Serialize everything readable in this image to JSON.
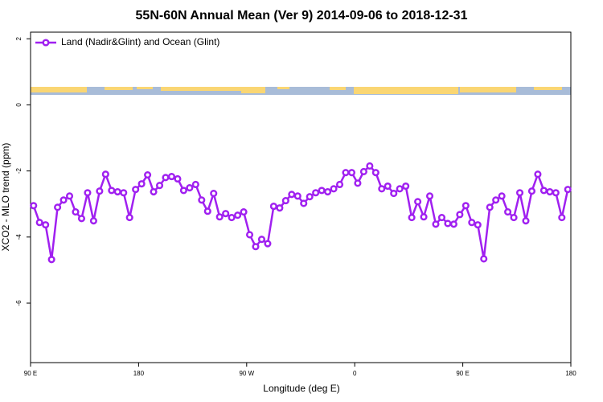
{
  "chart_data": {
    "type": "line",
    "title": "55N-60N Annual Mean (Ver 9)   2014-09-06 to 2018-12-31",
    "xlabel": "Longitude (deg E)",
    "ylabel": "XCO2 - MLO trend (ppm)",
    "xlim": [
      90,
      540
    ],
    "ylim": [
      -7.8,
      2.2
    ],
    "xticks": [
      {
        "value": 90,
        "label": "90 E"
      },
      180,
      {
        "value": 270,
        "label": "90 W"
      },
      {
        "value": 360,
        "label": "0"
      },
      {
        "value": 450,
        "label": "90 E"
      },
      {
        "value": 540,
        "label": "180"
      }
    ],
    "yticks": [
      2,
      0,
      -2,
      -4,
      -6
    ],
    "legend": "top-left",
    "x": [
      92.5,
      97.5,
      102.5,
      107.5,
      112.5,
      117.5,
      122.5,
      127.5,
      132.5,
      137.5,
      142.5,
      147.5,
      152.5,
      157.5,
      162.5,
      167.5,
      172.5,
      177.5,
      182.5,
      187.5,
      192.5,
      197.5,
      202.5,
      207.5,
      212.5,
      217.5,
      222.5,
      227.5,
      232.5,
      237.5,
      242.5,
      247.5,
      252.5,
      257.5,
      262.5,
      267.5,
      272.5,
      277.5,
      282.5,
      287.5,
      292.5,
      297.5,
      302.5,
      307.5,
      312.5,
      317.5,
      322.5,
      327.5,
      332.5,
      337.5,
      342.5,
      347.5,
      352.5,
      357.5,
      362.5,
      367.5,
      372.5,
      377.5,
      382.5,
      387.5,
      392.5,
      397.5,
      402.5,
      407.5,
      412.5,
      417.5,
      422.5,
      427.5,
      432.5,
      437.5,
      442.5,
      447.5,
      452.5,
      457.5,
      462.5,
      467.5,
      472.5,
      477.5,
      482.5,
      487.5,
      492.5,
      497.5,
      502.5,
      507.5,
      512.5,
      517.5,
      522.5,
      527.5,
      532.5,
      537.5
    ],
    "series": [
      {
        "name": "Land (Nadir&Glint) and Ocean (Glint)",
        "color": "#a020f0",
        "values": [
          -3.05,
          -3.56,
          -3.63,
          -4.68,
          -3.1,
          -2.88,
          -2.76,
          -3.24,
          -3.44,
          -2.66,
          -3.51,
          -2.61,
          -2.1,
          -2.59,
          -2.63,
          -2.66,
          -3.41,
          -2.56,
          -2.39,
          -2.12,
          -2.63,
          -2.44,
          -2.2,
          -2.17,
          -2.24,
          -2.59,
          -2.51,
          -2.41,
          -2.88,
          -3.22,
          -2.68,
          -3.39,
          -3.29,
          -3.41,
          -3.34,
          -3.24,
          -3.93,
          -4.29,
          -4.07,
          -4.2,
          -3.07,
          -3.12,
          -2.9,
          -2.71,
          -2.76,
          -2.98,
          -2.78,
          -2.66,
          -2.59,
          -2.63,
          -2.54,
          -2.41,
          -2.05,
          -2.05,
          -2.37,
          -2.02,
          -1.85,
          -2.05,
          -2.54,
          -2.46,
          -2.68,
          -2.54,
          -2.46,
          -3.41,
          -2.93,
          -3.39,
          -2.76,
          -3.61,
          -3.41,
          -3.59,
          -3.61,
          -3.32,
          -3.05,
          -3.56,
          -3.63,
          -4.66,
          -3.1,
          -2.88,
          -2.76,
          -3.24,
          -3.41,
          -2.66,
          -3.51,
          -2.61,
          -2.1,
          -2.59,
          -2.63,
          -2.66,
          -3.41,
          -2.56
        ]
      }
    ]
  }
}
